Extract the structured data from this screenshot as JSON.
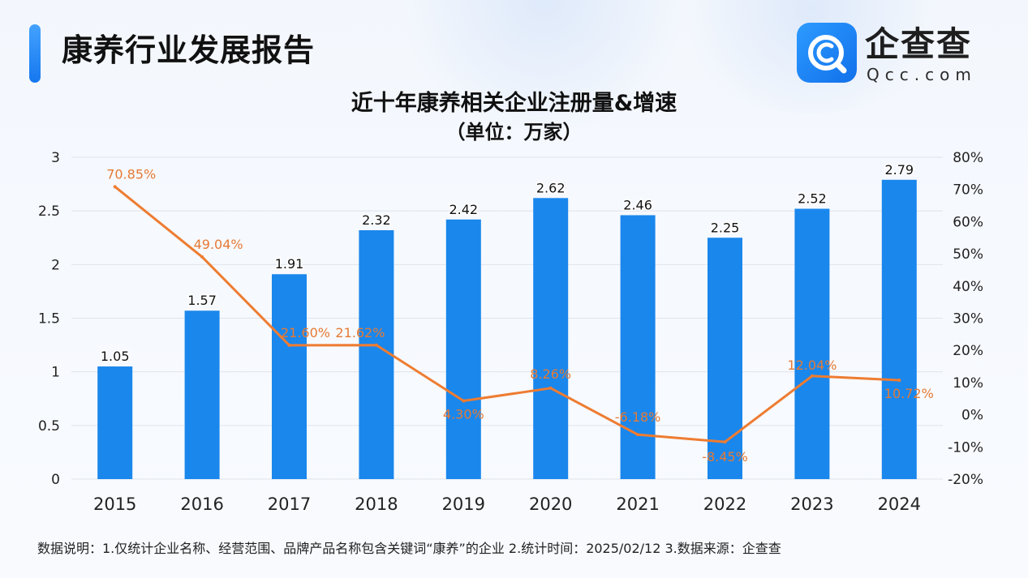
{
  "header": {
    "title": "康养行业发展报告"
  },
  "logo": {
    "name": "企查查",
    "url": "Qcc.com",
    "icon": "magnifier-c-icon",
    "color": "#1a84f2"
  },
  "chart_data": {
    "type": "bar",
    "title": "近十年康养相关企业注册量&增速",
    "subtitle": "（单位：万家）",
    "categories": [
      "2015",
      "2016",
      "2017",
      "2018",
      "2019",
      "2020",
      "2021",
      "2022",
      "2023",
      "2024"
    ],
    "ylim": [
      0,
      3
    ],
    "y_ticks": [
      "0",
      "0.5",
      "1",
      "1.5",
      "2",
      "2.5",
      "3"
    ],
    "y2lim": [
      -20,
      80
    ],
    "y2_ticks": [
      "-20%",
      "-10%",
      "0%",
      "10%",
      "20%",
      "30%",
      "40%",
      "50%",
      "60%",
      "70%",
      "80%"
    ],
    "grid": true,
    "series": [
      {
        "type": "bar",
        "axis": "left",
        "color": "#1a87ec",
        "values": [
          1.05,
          1.57,
          1.91,
          2.32,
          2.42,
          2.62,
          2.46,
          2.25,
          2.52,
          2.79
        ],
        "labels": [
          "1.05",
          "1.57",
          "1.91",
          "2.32",
          "2.42",
          "2.62",
          "2.46",
          "2.25",
          "2.52",
          "2.79"
        ]
      },
      {
        "type": "line",
        "axis": "right",
        "color": "#ee7c31",
        "values": [
          70.85,
          49.04,
          21.6,
          21.62,
          4.3,
          8.26,
          -6.18,
          -8.45,
          12.04,
          10.72
        ],
        "labels": [
          "70.85%",
          "49.04%",
          "21.60%",
          "21.62%",
          "4.30%",
          "8.26%",
          "-6.18%",
          "-8.45%",
          "12.04%",
          "10.72%"
        ]
      }
    ]
  },
  "footnote": "数据说明：1.仅统计企业名称、经营范围、品牌产品名称包含关键词“康养”的企业   2.统计时间：2025/02/12    3.数据来源：企查查"
}
